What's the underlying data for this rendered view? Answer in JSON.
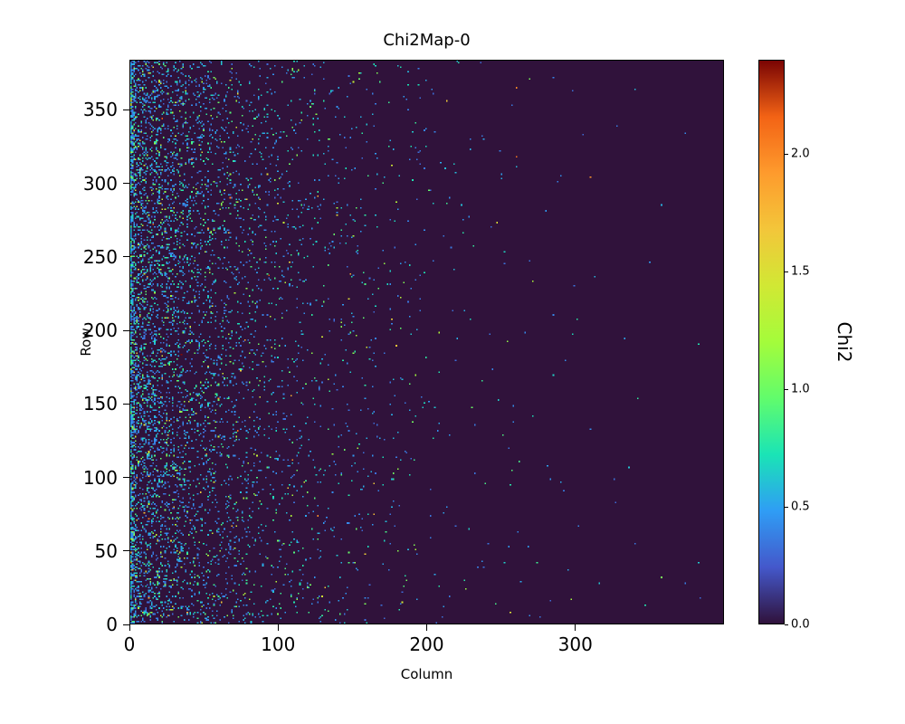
{
  "figure": {
    "title": "Chi2Map-0",
    "xlabel": "Column",
    "ylabel": "Row",
    "colorbar_label": "Chi2"
  },
  "chart_data": {
    "type": "heatmap",
    "title": "Chi2Map-0",
    "xlabel": "Column",
    "ylabel": "Row",
    "xlim": [
      0,
      400
    ],
    "ylim": [
      0,
      384
    ],
    "x_ticks": [
      0,
      100,
      200,
      300
    ],
    "y_ticks": [
      0,
      50,
      100,
      150,
      200,
      250,
      300,
      350
    ],
    "grid": false,
    "colorbar": {
      "label": "Chi2",
      "ticks": [
        0.0,
        0.5,
        1.0,
        1.5,
        2.0
      ],
      "vmin": 0.0,
      "vmax": 2.4,
      "position": "right"
    },
    "colormap": {
      "name": "turbo",
      "stops": [
        {
          "t": 0.0,
          "color": "#30123b"
        },
        {
          "t": 0.1,
          "color": "#4458cb"
        },
        {
          "t": 0.2,
          "color": "#2f9df5"
        },
        {
          "t": 0.3,
          "color": "#1ae4b6"
        },
        {
          "t": 0.4,
          "color": "#61fc6c"
        },
        {
          "t": 0.5,
          "color": "#a4fc3b"
        },
        {
          "t": 0.6,
          "color": "#d1e834"
        },
        {
          "t": 0.7,
          "color": "#f3c63a"
        },
        {
          "t": 0.8,
          "color": "#fe9b2d"
        },
        {
          "t": 0.9,
          "color": "#f36315"
        },
        {
          "t": 1.0,
          "color": "#7a0403"
        }
      ]
    },
    "background_value": 0.0,
    "noise_model": {
      "description": "Sparse speckle of nonzero Chi2 pixels over a zero-valued (dark purple) background; point density is highest at the left edge and decays exponentially with column index, vanishing beyond ~column 300. Most nonzero pixels are in the blue/cyan range (~0.3-0.8) with rare green/yellow/orange/red outliers up to ~2.4.",
      "seed": 42,
      "edge_density": 0.5,
      "edge_tau": 1.5,
      "base_density": 0.26,
      "column_tau": 55,
      "floor_density": 0.0001,
      "value_offset": 0.3,
      "value_scale": 0.28
    }
  }
}
